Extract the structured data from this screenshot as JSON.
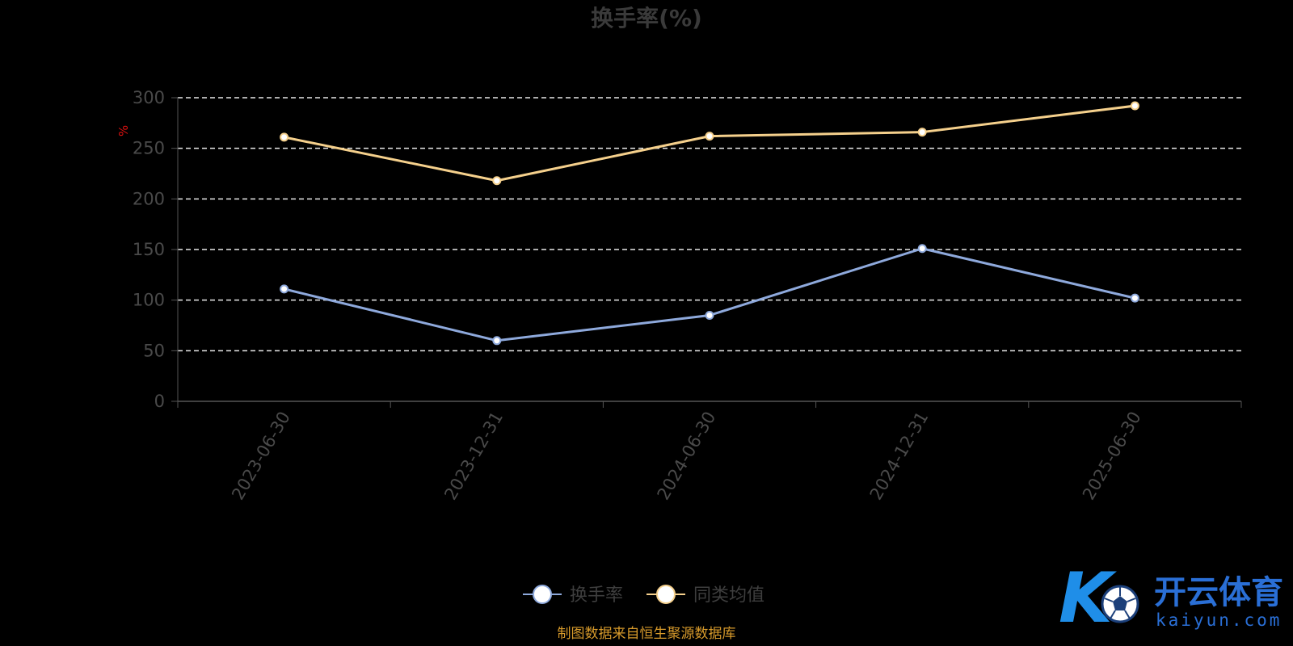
{
  "chart_data": {
    "type": "line",
    "title": "换手率(%)",
    "ylabel": "%",
    "ylim": [
      0,
      300
    ],
    "yticks": [
      0,
      50,
      100,
      150,
      200,
      250,
      300
    ],
    "categories": [
      "2023-06-30",
      "2023-12-31",
      "2024-06-30",
      "2024-12-31",
      "2025-06-30"
    ],
    "series": [
      {
        "name": "换手率",
        "values": [
          111,
          60,
          85,
          151,
          102
        ],
        "color": "#8ea9dc"
      },
      {
        "name": "同类均值",
        "values": [
          261,
          218,
          262,
          266,
          292
        ],
        "color": "#f5d08c"
      }
    ],
    "grid": "dashed-horizontal",
    "legend": "bottom-center"
  },
  "source_note": "制图数据来自恒生聚源数据库",
  "watermark": {
    "mark": "K",
    "name": "开云体育",
    "domain": "kaiyun.com"
  }
}
